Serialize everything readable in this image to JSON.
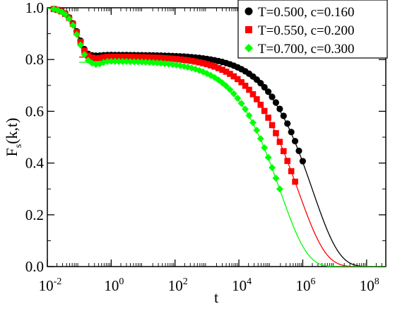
{
  "chart_data": {
    "type": "scatter",
    "title": "",
    "xlabel": "t",
    "ylabel": "F",
    "ylabel_subscript": "s",
    "ylabel_suffix": "(k,t)",
    "xscale": "log",
    "xlim": [
      0.01,
      400000000
    ],
    "ylim": [
      0.0,
      1.0
    ],
    "x_ticks": [
      {
        "base": "10",
        "exp": "-2",
        "value": 0.01
      },
      {
        "base": "10",
        "exp": "0",
        "value": 1
      },
      {
        "base": "10",
        "exp": "2",
        "value": 100
      },
      {
        "base": "10",
        "exp": "4",
        "value": 10000
      },
      {
        "base": "10",
        "exp": "6",
        "value": 1000000
      },
      {
        "base": "10",
        "exp": "8",
        "value": 100000000
      }
    ],
    "y_ticks": [
      {
        "label": "0.0",
        "value": 0.0
      },
      {
        "label": "0.2",
        "value": 0.2
      },
      {
        "label": "0.4",
        "value": 0.4
      },
      {
        "label": "0.6",
        "value": 0.6
      },
      {
        "label": "0.8",
        "value": 0.8
      },
      {
        "label": "1.0",
        "value": 1.0
      }
    ],
    "grid": false,
    "legend_position": "top-right",
    "series": [
      {
        "name": "T=0.500, c=0.160",
        "color": "#000000",
        "marker": "circle",
        "plateau": 0.818,
        "dip": 0.815,
        "fit": {
          "f": 0.81,
          "tau": 2000000,
          "beta": 0.52
        },
        "x_last": 1000000
      },
      {
        "name": "T=0.550, c=0.200",
        "color": "#ff0000",
        "marker": "square",
        "plateau": 0.812,
        "dip": 0.805,
        "fit": {
          "f": 0.81,
          "tau": 700000,
          "beta": 0.5
        },
        "x_last": 700000
      },
      {
        "name": "T=0.700, c=0.300",
        "color": "#00ff00",
        "marker": "diamond",
        "plateau": 0.795,
        "dip": 0.782,
        "fit": {
          "f": 0.79,
          "tau": 200000,
          "beta": 0.52
        },
        "x_last": 200000
      }
    ]
  }
}
